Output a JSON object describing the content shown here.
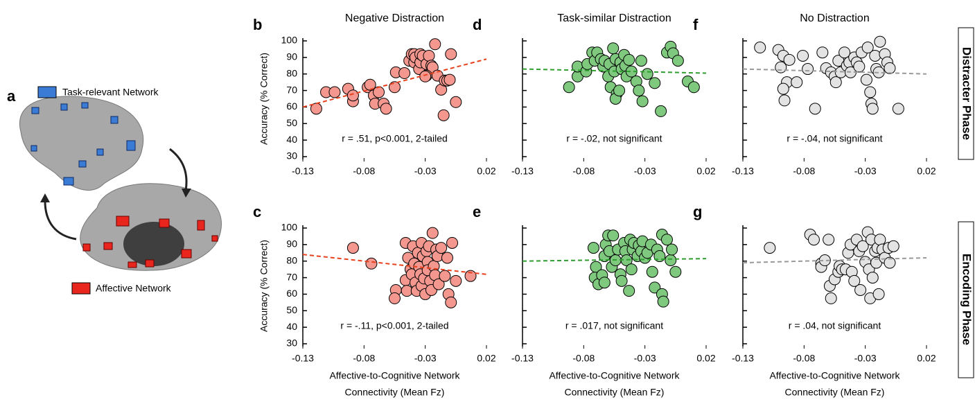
{
  "panel_a": {
    "letter": "a",
    "legend": [
      {
        "label": "Task-relevant Network",
        "color": "#3a7bd5"
      },
      {
        "label": "Affective Network",
        "color": "#e8261e"
      }
    ]
  },
  "row_labels": [
    "Distracter Phase",
    "Encoding Phase"
  ],
  "chart_data": [
    {
      "type": "scatter",
      "letter": "b",
      "title": "Negative Distraction",
      "ylabel": "Accuracy (% Correct)",
      "annotation": "r = .51, p<0.001, 2-tailed",
      "xlim": [
        -0.13,
        0.02
      ],
      "xticks": [
        -0.13,
        -0.08,
        -0.03,
        0.02
      ],
      "ylim": [
        30,
        100
      ],
      "yticks": [
        30,
        40,
        50,
        60,
        70,
        80,
        90,
        100
      ],
      "color": "#f4978e",
      "x": [
        -0.119,
        -0.111,
        -0.104,
        -0.093,
        -0.089,
        -0.089,
        -0.077,
        -0.075,
        -0.072,
        -0.068,
        -0.071,
        -0.064,
        -0.062,
        -0.055,
        -0.054,
        -0.047,
        -0.043,
        -0.041,
        -0.039,
        -0.039,
        -0.038,
        -0.035,
        -0.034,
        -0.034,
        -0.032,
        -0.029,
        -0.027,
        -0.025,
        -0.024,
        -0.029,
        -0.03,
        -0.02,
        -0.022,
        -0.017,
        -0.014,
        -0.012,
        -0.01,
        -0.015,
        -0.009,
        -0.005
      ],
      "values": [
        59,
        69,
        69,
        71,
        63.5,
        67,
        72,
        73.5,
        67,
        69,
        62,
        62,
        59,
        72,
        81,
        80.5,
        88,
        92,
        92,
        87,
        90,
        83,
        87,
        92,
        91,
        86,
        91,
        85,
        84,
        79,
        78.5,
        79,
        98,
        70.5,
        76,
        76,
        76.5,
        55,
        92,
        63
      ],
      "trend": {
        "x": [
          -0.13,
          0.02
        ],
        "values": [
          60,
          89
        ],
        "color": "#e8401c"
      }
    },
    {
      "type": "scatter",
      "letter": "d",
      "title": "Task-similar Distraction",
      "annotation": "r = -.02, not significant",
      "ytick_labels": false,
      "xlim": [
        -0.13,
        0.02
      ],
      "xticks": [
        -0.13,
        -0.08,
        -0.03,
        0.02
      ],
      "ylim": [
        30,
        100
      ],
      "yticks": [
        30,
        40,
        50,
        60,
        70,
        80,
        90,
        100
      ],
      "color": "#7fc97f",
      "x": [
        -0.092,
        -0.085,
        -0.085,
        -0.078,
        -0.077,
        -0.073,
        -0.071,
        -0.069,
        -0.066,
        -0.064,
        -0.063,
        -0.06,
        -0.059,
        -0.058,
        -0.056,
        -0.055,
        -0.054,
        -0.053,
        -0.054,
        -0.051,
        -0.05,
        -0.049,
        -0.047,
        -0.046,
        -0.045,
        -0.043,
        -0.041,
        -0.037,
        -0.035,
        -0.033,
        -0.032,
        -0.028,
        -0.022,
        -0.017,
        -0.012,
        -0.009,
        -0.007,
        -0.003,
        0.005,
        0.01
      ],
      "values": [
        72,
        78.5,
        84.5,
        81.5,
        86,
        93,
        88,
        93,
        89,
        84.5,
        88,
        78.5,
        86,
        72,
        95.5,
        81.5,
        89,
        68,
        65,
        70,
        87,
        83,
        91.5,
        85,
        78.5,
        88.5,
        81.5,
        75.5,
        70,
        88,
        63.5,
        80,
        74.5,
        57.5,
        93,
        96.5,
        92.5,
        88,
        75.5,
        72
      ],
      "trend": {
        "x": [
          -0.13,
          0.02
        ],
        "values": [
          83,
          80.5
        ],
        "color": "#2e9e2e"
      }
    },
    {
      "type": "scatter",
      "letter": "f",
      "title": "No Distraction",
      "annotation": "r = -.04, not significant",
      "ytick_labels": false,
      "xlim": [
        -0.13,
        0.02
      ],
      "xticks": [
        -0.13,
        -0.08,
        -0.03,
        0.02
      ],
      "ylim": [
        30,
        100
      ],
      "yticks": [
        30,
        40,
        50,
        60,
        70,
        80,
        90,
        100
      ],
      "color": "#e3e3e3",
      "x": [
        -0.116,
        -0.101,
        -0.097,
        -0.099,
        -0.092,
        -0.094,
        -0.097,
        -0.096,
        -0.086,
        -0.081,
        -0.077,
        -0.071,
        -0.065,
        -0.062,
        -0.058,
        -0.055,
        -0.054,
        -0.052,
        -0.05,
        -0.047,
        -0.045,
        -0.043,
        -0.042,
        -0.039,
        -0.037,
        -0.035,
        -0.033,
        -0.029,
        -0.028,
        -0.026,
        -0.025,
        -0.024,
        -0.022,
        -0.021,
        -0.019,
        -0.018,
        -0.014,
        -0.012,
        -0.01,
        -0.003
      ],
      "values": [
        96,
        94.5,
        91,
        84,
        88.5,
        75,
        71,
        64,
        75,
        91,
        83,
        59,
        93,
        83.5,
        81,
        78.5,
        75,
        88,
        81,
        93,
        85,
        87,
        81,
        90,
        87,
        84.5,
        93,
        76.5,
        96,
        69,
        62,
        59,
        91,
        83,
        81,
        99.5,
        92,
        87,
        83.5,
        59
      ],
      "trend": {
        "x": [
          -0.13,
          0.02
        ],
        "values": [
          83,
          80
        ],
        "color": "#999999"
      }
    },
    {
      "type": "scatter",
      "letter": "c",
      "ylabel": "Accuracy (% Correct)",
      "xlabel": [
        "Affective-to-Cognitive Network",
        "Connectivity (Mean Fz)"
      ],
      "annotation": "r = -.11, p<0.001, 2-tailed",
      "xlim": [
        -0.13,
        0.02
      ],
      "xticks": [
        -0.13,
        -0.08,
        -0.03,
        0.02
      ],
      "ylim": [
        30,
        100
      ],
      "yticks": [
        30,
        40,
        50,
        60,
        70,
        80,
        90,
        100
      ],
      "color": "#f4978e",
      "x": [
        -0.089,
        -0.074,
        -0.054,
        -0.055,
        -0.046,
        -0.045,
        -0.046,
        -0.044,
        -0.042,
        -0.041,
        -0.04,
        -0.039,
        -0.038,
        -0.037,
        -0.036,
        -0.035,
        -0.034,
        -0.033,
        -0.033,
        -0.032,
        -0.031,
        -0.03,
        -0.029,
        -0.028,
        -0.028,
        -0.027,
        -0.026,
        -0.025,
        -0.024,
        -0.023,
        -0.022,
        -0.021,
        -0.02,
        -0.019,
        -0.017,
        -0.014,
        -0.012,
        -0.011,
        -0.009,
        -0.008,
        -0.005,
        0.007
      ],
      "values": [
        88,
        78.5,
        62.5,
        57.5,
        68.5,
        62,
        91,
        82,
        75,
        72,
        89,
        78.5,
        67,
        62,
        85,
        76.5,
        72,
        65,
        91,
        83,
        69.5,
        60,
        86,
        79.5,
        74.5,
        89,
        68,
        62.5,
        97,
        77,
        71.5,
        87,
        83,
        66,
        88,
        71,
        82,
        60,
        55,
        91,
        68,
        71
      ],
      "trend": {
        "x": [
          -0.13,
          0.02
        ],
        "values": [
          84,
          72
        ],
        "color": "#e8401c"
      }
    },
    {
      "type": "scatter",
      "letter": "e",
      "xlabel": [
        "Affective-to-Cognitive Network",
        "Connectivity (Mean Fz)"
      ],
      "annotation": "r = .017, not significant",
      "ytick_labels": false,
      "xlim": [
        -0.13,
        0.02
      ],
      "xticks": [
        -0.13,
        -0.08,
        -0.03,
        0.02
      ],
      "ylim": [
        30,
        100
      ],
      "yticks": [
        30,
        40,
        50,
        60,
        70,
        80,
        90,
        100
      ],
      "color": "#7fc97f",
      "x": [
        -0.072,
        -0.07,
        -0.071,
        -0.068,
        -0.065,
        -0.063,
        -0.063,
        -0.062,
        -0.06,
        -0.059,
        -0.057,
        -0.056,
        -0.054,
        -0.052,
        -0.05,
        -0.049,
        -0.047,
        -0.046,
        -0.045,
        -0.043,
        -0.042,
        -0.041,
        -0.04,
        -0.039,
        -0.036,
        -0.035,
        -0.033,
        -0.032,
        -0.03,
        -0.028,
        -0.025,
        -0.024,
        -0.022,
        -0.02,
        -0.018,
        -0.016,
        -0.016,
        -0.015,
        -0.012,
        -0.009,
        -0.008,
        -0.005
      ],
      "values": [
        88,
        76.5,
        70,
        66,
        71.5,
        67,
        83,
        90,
        95.5,
        86,
        76.5,
        95.5,
        80.5,
        87,
        72,
        68,
        91,
        86,
        80.5,
        62,
        93,
        75,
        87,
        91,
        83,
        89.5,
        86,
        92,
        82,
        85,
        90,
        73.5,
        64,
        87,
        83,
        96,
        60,
        55.5,
        93,
        80.5,
        87,
        73.5
      ],
      "trend": {
        "x": [
          -0.13,
          0.02
        ],
        "values": [
          80,
          81.5
        ],
        "color": "#2e9e2e"
      }
    },
    {
      "type": "scatter",
      "letter": "g",
      "xlabel": [
        "Affective-to-Cognitive Network",
        "Connectivity (Mean Fz)"
      ],
      "annotation": "r = .04, not significant",
      "ytick_labels": false,
      "xlim": [
        -0.13,
        0.02
      ],
      "xticks": [
        -0.13,
        -0.08,
        -0.03,
        0.02
      ],
      "ylim": [
        30,
        100
      ],
      "yticks": [
        30,
        40,
        50,
        60,
        70,
        80,
        90,
        100
      ],
      "color": "#e3e3e3",
      "x": [
        -0.108,
        -0.075,
        -0.072,
        -0.066,
        -0.066,
        -0.063,
        -0.06,
        -0.059,
        -0.058,
        -0.055,
        -0.052,
        -0.051,
        -0.049,
        -0.046,
        -0.044,
        -0.042,
        -0.041,
        -0.039,
        -0.037,
        -0.035,
        -0.034,
        -0.032,
        -0.03,
        -0.028,
        -0.027,
        -0.026,
        -0.025,
        -0.024,
        -0.022,
        -0.021,
        -0.02,
        -0.019,
        -0.018,
        -0.016,
        -0.014,
        -0.011,
        -0.01,
        -0.007
      ],
      "values": [
        88,
        96,
        93,
        78.5,
        76.5,
        80.5,
        93,
        65,
        57.5,
        69,
        73.5,
        77,
        75,
        75,
        85,
        90,
        73.5,
        68,
        93,
        86,
        62.5,
        89,
        79.5,
        97.5,
        75,
        57.5,
        93,
        70,
        86,
        79,
        88,
        60,
        93,
        87,
        82,
        88,
        79,
        89
      ],
      "trend": {
        "x": [
          -0.13,
          0.02
        ],
        "values": [
          79,
          82
        ],
        "color": "#999999"
      }
    }
  ]
}
